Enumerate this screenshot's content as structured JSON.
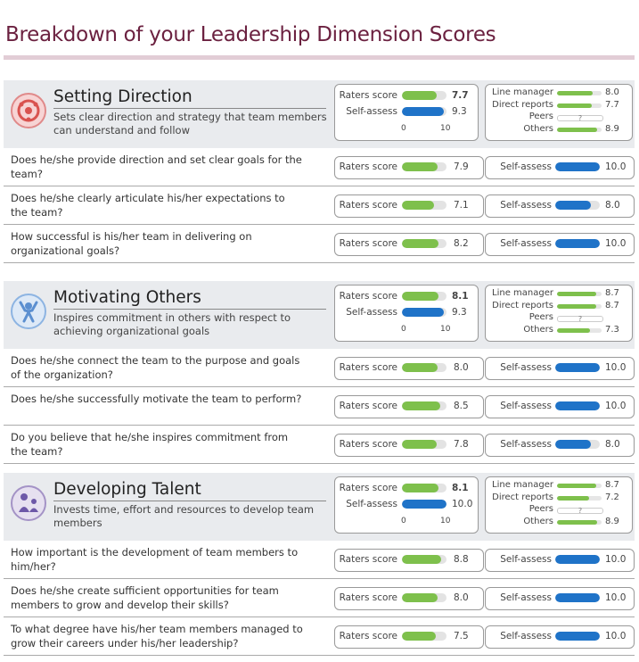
{
  "page": {
    "title": "Breakdown of your Leadership Dimension Scores"
  },
  "colors": {
    "accent": "#6b2140",
    "raters": "#7ec04c",
    "self": "#1f73c8"
  },
  "labels": {
    "raters_score": "Raters score",
    "self_assess": "Self-assess",
    "line_manager": "Line manager",
    "direct_reports": "Direct reports",
    "peers": "Peers",
    "others": "Others",
    "not_available": "?",
    "scale_min": "0",
    "scale_max": "10"
  },
  "sections": [
    {
      "title": "Setting Direction",
      "description": "Sets clear direction and strategy that team members can understand and follow",
      "icon": "target-people-icon",
      "summary": {
        "raters": 7.7,
        "raters_text": "7.7",
        "self": 9.3,
        "self_text": "9.3"
      },
      "groups": {
        "line_manager": 8.0,
        "line_manager_text": "8.0",
        "direct_reports": 7.7,
        "direct_reports_text": "7.7",
        "others": 8.9,
        "others_text": "8.9"
      },
      "questions": [
        {
          "text": "Does he/she provide direction and set clear goals for the team?",
          "raters": 7.9,
          "raters_text": "7.9",
          "self": 10.0,
          "self_text": "10.0"
        },
        {
          "text": "Does he/she clearly articulate his/her expectations to the team?",
          "raters": 7.1,
          "raters_text": "7.1",
          "self": 8.0,
          "self_text": "8.0"
        },
        {
          "text": "How successful is his/her team in delivering on organizational goals?",
          "raters": 8.2,
          "raters_text": "8.2",
          "self": 10.0,
          "self_text": "10.0"
        }
      ]
    },
    {
      "title": "Motivating Others",
      "description": "Inspires commitment in others with respect to achieving organizational goals",
      "icon": "cheering-person-icon",
      "summary": {
        "raters": 8.1,
        "raters_text": "8.1",
        "self": 9.3,
        "self_text": "9.3"
      },
      "groups": {
        "line_manager": 8.7,
        "line_manager_text": "8.7",
        "direct_reports": 8.7,
        "direct_reports_text": "8.7",
        "others": 7.3,
        "others_text": "7.3"
      },
      "questions": [
        {
          "text": "Does he/she connect the team to the purpose and goals of the organization?",
          "raters": 8.0,
          "raters_text": "8.0",
          "self": 10.0,
          "self_text": "10.0"
        },
        {
          "text": "Does he/she successfully motivate the team to perform?",
          "raters": 8.5,
          "raters_text": "8.5",
          "self": 10.0,
          "self_text": "10.0"
        },
        {
          "text": "Do you believe that he/she inspires commitment from the team?",
          "raters": 7.8,
          "raters_text": "7.8",
          "self": 8.0,
          "self_text": "8.0"
        }
      ]
    },
    {
      "title": "Developing Talent",
      "description": "Invests time, effort and resources to develop team members",
      "icon": "mentoring-icon",
      "summary": {
        "raters": 8.1,
        "raters_text": "8.1",
        "self": 10.0,
        "self_text": "10.0"
      },
      "groups": {
        "line_manager": 8.7,
        "line_manager_text": "8.7",
        "direct_reports": 7.2,
        "direct_reports_text": "7.2",
        "others": 8.9,
        "others_text": "8.9"
      },
      "questions": [
        {
          "text": "How important is the development of team members to him/her?",
          "raters": 8.8,
          "raters_text": "8.8",
          "self": 10.0,
          "self_text": "10.0"
        },
        {
          "text": "Does he/she create sufficient opportunities for team members to grow and develop their skills?",
          "raters": 8.0,
          "raters_text": "8.0",
          "self": 10.0,
          "self_text": "10.0"
        },
        {
          "text": "To what degree have his/her team members managed to grow their careers under his/her leadership?",
          "raters": 7.5,
          "raters_text": "7.5",
          "self": 10.0,
          "self_text": "10.0"
        }
      ]
    }
  ]
}
